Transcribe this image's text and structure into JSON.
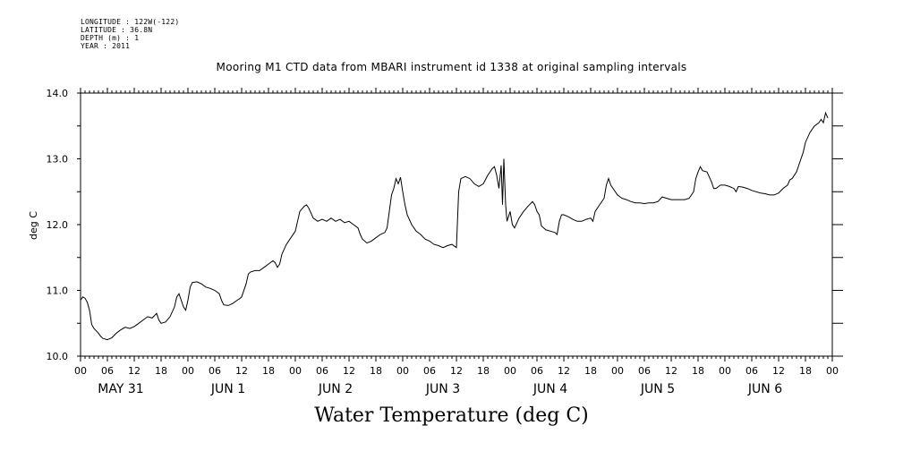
{
  "header": {
    "meta_lines": [
      "LONGITUDE : 122W(-122)",
      "LATITUDE : 36.8N",
      "DEPTH (m) : 1",
      "YEAR : 2011"
    ],
    "title": "Mooring M1 CTD data from MBARI instrument id 1338 at original sampling intervals"
  },
  "chart_data": {
    "type": "line",
    "title": "Mooring M1 CTD data from MBARI instrument id 1338 at original sampling intervals",
    "bottom_title": "Water Temperature (deg C)",
    "ylabel": "deg C",
    "xlabel": "",
    "ylim": [
      10.0,
      14.0
    ],
    "y_ticks": [
      "10.0",
      "11.0",
      "12.0",
      "13.0",
      "14.0"
    ],
    "x_unit": "hours from May 31 00:00",
    "xlim": [
      0,
      168
    ],
    "x_hour_ticks": [
      "00",
      "06",
      "12",
      "18",
      "00",
      "06",
      "12",
      "18",
      "00",
      "06",
      "12",
      "18",
      "00",
      "06",
      "12",
      "18",
      "00",
      "06",
      "12",
      "18",
      "00",
      "06",
      "12",
      "18",
      "00",
      "06",
      "12",
      "18",
      "00"
    ],
    "day_labels": [
      "MAY 31",
      "JUN  1",
      "JUN  2",
      "JUN  3",
      "JUN  4",
      "JUN  5",
      "JUN  6"
    ],
    "grid": false,
    "line_color": "#000000",
    "series": [
      {
        "values": [
          [
            0,
            10.85
          ],
          [
            0.5,
            10.9
          ],
          [
            1,
            10.88
          ],
          [
            1.5,
            10.82
          ],
          [
            2,
            10.7
          ],
          [
            2.5,
            10.48
          ],
          [
            3,
            10.42
          ],
          [
            4,
            10.35
          ],
          [
            4.5,
            10.3
          ],
          [
            5,
            10.27
          ],
          [
            6,
            10.25
          ],
          [
            7,
            10.28
          ],
          [
            8,
            10.35
          ],
          [
            9,
            10.4
          ],
          [
            10,
            10.44
          ],
          [
            11,
            10.42
          ],
          [
            12,
            10.45
          ],
          [
            13,
            10.5
          ],
          [
            14,
            10.55
          ],
          [
            15,
            10.6
          ],
          [
            16,
            10.58
          ],
          [
            17,
            10.65
          ],
          [
            17.5,
            10.55
          ],
          [
            18,
            10.5
          ],
          [
            19,
            10.52
          ],
          [
            20,
            10.6
          ],
          [
            21,
            10.75
          ],
          [
            21.5,
            10.9
          ],
          [
            22,
            10.95
          ],
          [
            22.5,
            10.85
          ],
          [
            23,
            10.75
          ],
          [
            23.5,
            10.7
          ],
          [
            24,
            10.85
          ],
          [
            24.5,
            11.05
          ],
          [
            25,
            11.12
          ],
          [
            26,
            11.13
          ],
          [
            27,
            11.1
          ],
          [
            28,
            11.05
          ],
          [
            29,
            11.03
          ],
          [
            30,
            11.0
          ],
          [
            31,
            10.95
          ],
          [
            31.5,
            10.85
          ],
          [
            32,
            10.78
          ],
          [
            33,
            10.77
          ],
          [
            34,
            10.8
          ],
          [
            35,
            10.85
          ],
          [
            35.5,
            10.87
          ],
          [
            36,
            10.9
          ],
          [
            37,
            11.1
          ],
          [
            37.5,
            11.25
          ],
          [
            38,
            11.28
          ],
          [
            39,
            11.3
          ],
          [
            40,
            11.3
          ],
          [
            41,
            11.35
          ],
          [
            42,
            11.4
          ],
          [
            43,
            11.45
          ],
          [
            43.5,
            11.42
          ],
          [
            44,
            11.35
          ],
          [
            44.5,
            11.4
          ],
          [
            45,
            11.55
          ],
          [
            46,
            11.7
          ],
          [
            47,
            11.8
          ],
          [
            48,
            11.9
          ],
          [
            48.5,
            12.05
          ],
          [
            49,
            12.2
          ],
          [
            50,
            12.28
          ],
          [
            50.5,
            12.3
          ],
          [
            51,
            12.25
          ],
          [
            52,
            12.1
          ],
          [
            53,
            12.05
          ],
          [
            54,
            12.08
          ],
          [
            55,
            12.05
          ],
          [
            56,
            12.1
          ],
          [
            57,
            12.05
          ],
          [
            58,
            12.08
          ],
          [
            59,
            12.03
          ],
          [
            60,
            12.05
          ],
          [
            61,
            12.0
          ],
          [
            62,
            11.95
          ],
          [
            62.5,
            11.85
          ],
          [
            63,
            11.78
          ],
          [
            64,
            11.72
          ],
          [
            65,
            11.75
          ],
          [
            66,
            11.8
          ],
          [
            67,
            11.85
          ],
          [
            68,
            11.88
          ],
          [
            68.5,
            11.95
          ],
          [
            69,
            12.2
          ],
          [
            69.5,
            12.45
          ],
          [
            70,
            12.55
          ],
          [
            70.5,
            12.7
          ],
          [
            71,
            12.62
          ],
          [
            71.5,
            12.72
          ],
          [
            72,
            12.5
          ],
          [
            72.5,
            12.3
          ],
          [
            73,
            12.15
          ],
          [
            74,
            12.0
          ],
          [
            75,
            11.9
          ],
          [
            76,
            11.85
          ],
          [
            77,
            11.78
          ],
          [
            78,
            11.75
          ],
          [
            79,
            11.7
          ],
          [
            80,
            11.68
          ],
          [
            81,
            11.65
          ],
          [
            82,
            11.68
          ],
          [
            83,
            11.7
          ],
          [
            84,
            11.65
          ],
          [
            84.5,
            12.5
          ],
          [
            85,
            12.7
          ],
          [
            86,
            12.73
          ],
          [
            87,
            12.7
          ],
          [
            88,
            12.62
          ],
          [
            89,
            12.58
          ],
          [
            90,
            12.62
          ],
          [
            91,
            12.75
          ],
          [
            92,
            12.85
          ],
          [
            92.5,
            12.88
          ],
          [
            93,
            12.75
          ],
          [
            93.5,
            12.55
          ],
          [
            94,
            12.9
          ],
          [
            94.3,
            12.3
          ],
          [
            94.6,
            13.0
          ],
          [
            95,
            12.3
          ],
          [
            95.3,
            12.05
          ],
          [
            96,
            12.2
          ],
          [
            96.5,
            12.0
          ],
          [
            97,
            11.95
          ],
          [
            98,
            12.1
          ],
          [
            99,
            12.2
          ],
          [
            100,
            12.28
          ],
          [
            101,
            12.35
          ],
          [
            101.5,
            12.3
          ],
          [
            102,
            12.2
          ],
          [
            102.5,
            12.15
          ],
          [
            103,
            11.98
          ],
          [
            103.5,
            11.95
          ],
          [
            104,
            11.92
          ],
          [
            105,
            11.9
          ],
          [
            106,
            11.88
          ],
          [
            106.5,
            11.85
          ],
          [
            107,
            12.05
          ],
          [
            107.5,
            12.15
          ],
          [
            108,
            12.15
          ],
          [
            109,
            12.12
          ],
          [
            110,
            12.08
          ],
          [
            111,
            12.05
          ],
          [
            112,
            12.05
          ],
          [
            113,
            12.08
          ],
          [
            114,
            12.1
          ],
          [
            114.5,
            12.05
          ],
          [
            115,
            12.2
          ],
          [
            116,
            12.3
          ],
          [
            117,
            12.4
          ],
          [
            117.5,
            12.6
          ],
          [
            118,
            12.7
          ],
          [
            118.5,
            12.6
          ],
          [
            119,
            12.55
          ],
          [
            120,
            12.45
          ],
          [
            121,
            12.4
          ],
          [
            122,
            12.38
          ],
          [
            123,
            12.35
          ],
          [
            124,
            12.33
          ],
          [
            125,
            12.33
          ],
          [
            126,
            12.32
          ],
          [
            127,
            12.33
          ],
          [
            128,
            12.33
          ],
          [
            129,
            12.35
          ],
          [
            130,
            12.42
          ],
          [
            131,
            12.4
          ],
          [
            132,
            12.38
          ],
          [
            133,
            12.38
          ],
          [
            134,
            12.38
          ],
          [
            135,
            12.38
          ],
          [
            136,
            12.4
          ],
          [
            137,
            12.5
          ],
          [
            137.5,
            12.7
          ],
          [
            138,
            12.8
          ],
          [
            138.5,
            12.88
          ],
          [
            139,
            12.82
          ],
          [
            140,
            12.8
          ],
          [
            141,
            12.65
          ],
          [
            141.5,
            12.55
          ],
          [
            142,
            12.55
          ],
          [
            143,
            12.6
          ],
          [
            144,
            12.6
          ],
          [
            145,
            12.58
          ],
          [
            146,
            12.55
          ],
          [
            146.5,
            12.5
          ],
          [
            147,
            12.58
          ],
          [
            148,
            12.57
          ],
          [
            149,
            12.55
          ],
          [
            150,
            12.52
          ],
          [
            151,
            12.5
          ],
          [
            152,
            12.48
          ],
          [
            153,
            12.47
          ],
          [
            154,
            12.45
          ],
          [
            155,
            12.45
          ],
          [
            156,
            12.48
          ],
          [
            157,
            12.55
          ],
          [
            158,
            12.6
          ],
          [
            158.5,
            12.68
          ],
          [
            159,
            12.7
          ],
          [
            160,
            12.8
          ],
          [
            161,
            13.0
          ],
          [
            161.5,
            13.1
          ],
          [
            162,
            13.25
          ],
          [
            163,
            13.4
          ],
          [
            164,
            13.5
          ],
          [
            165,
            13.55
          ],
          [
            165.5,
            13.6
          ],
          [
            166,
            13.55
          ],
          [
            166.5,
            13.7
          ],
          [
            167,
            13.62
          ]
        ]
      }
    ]
  }
}
